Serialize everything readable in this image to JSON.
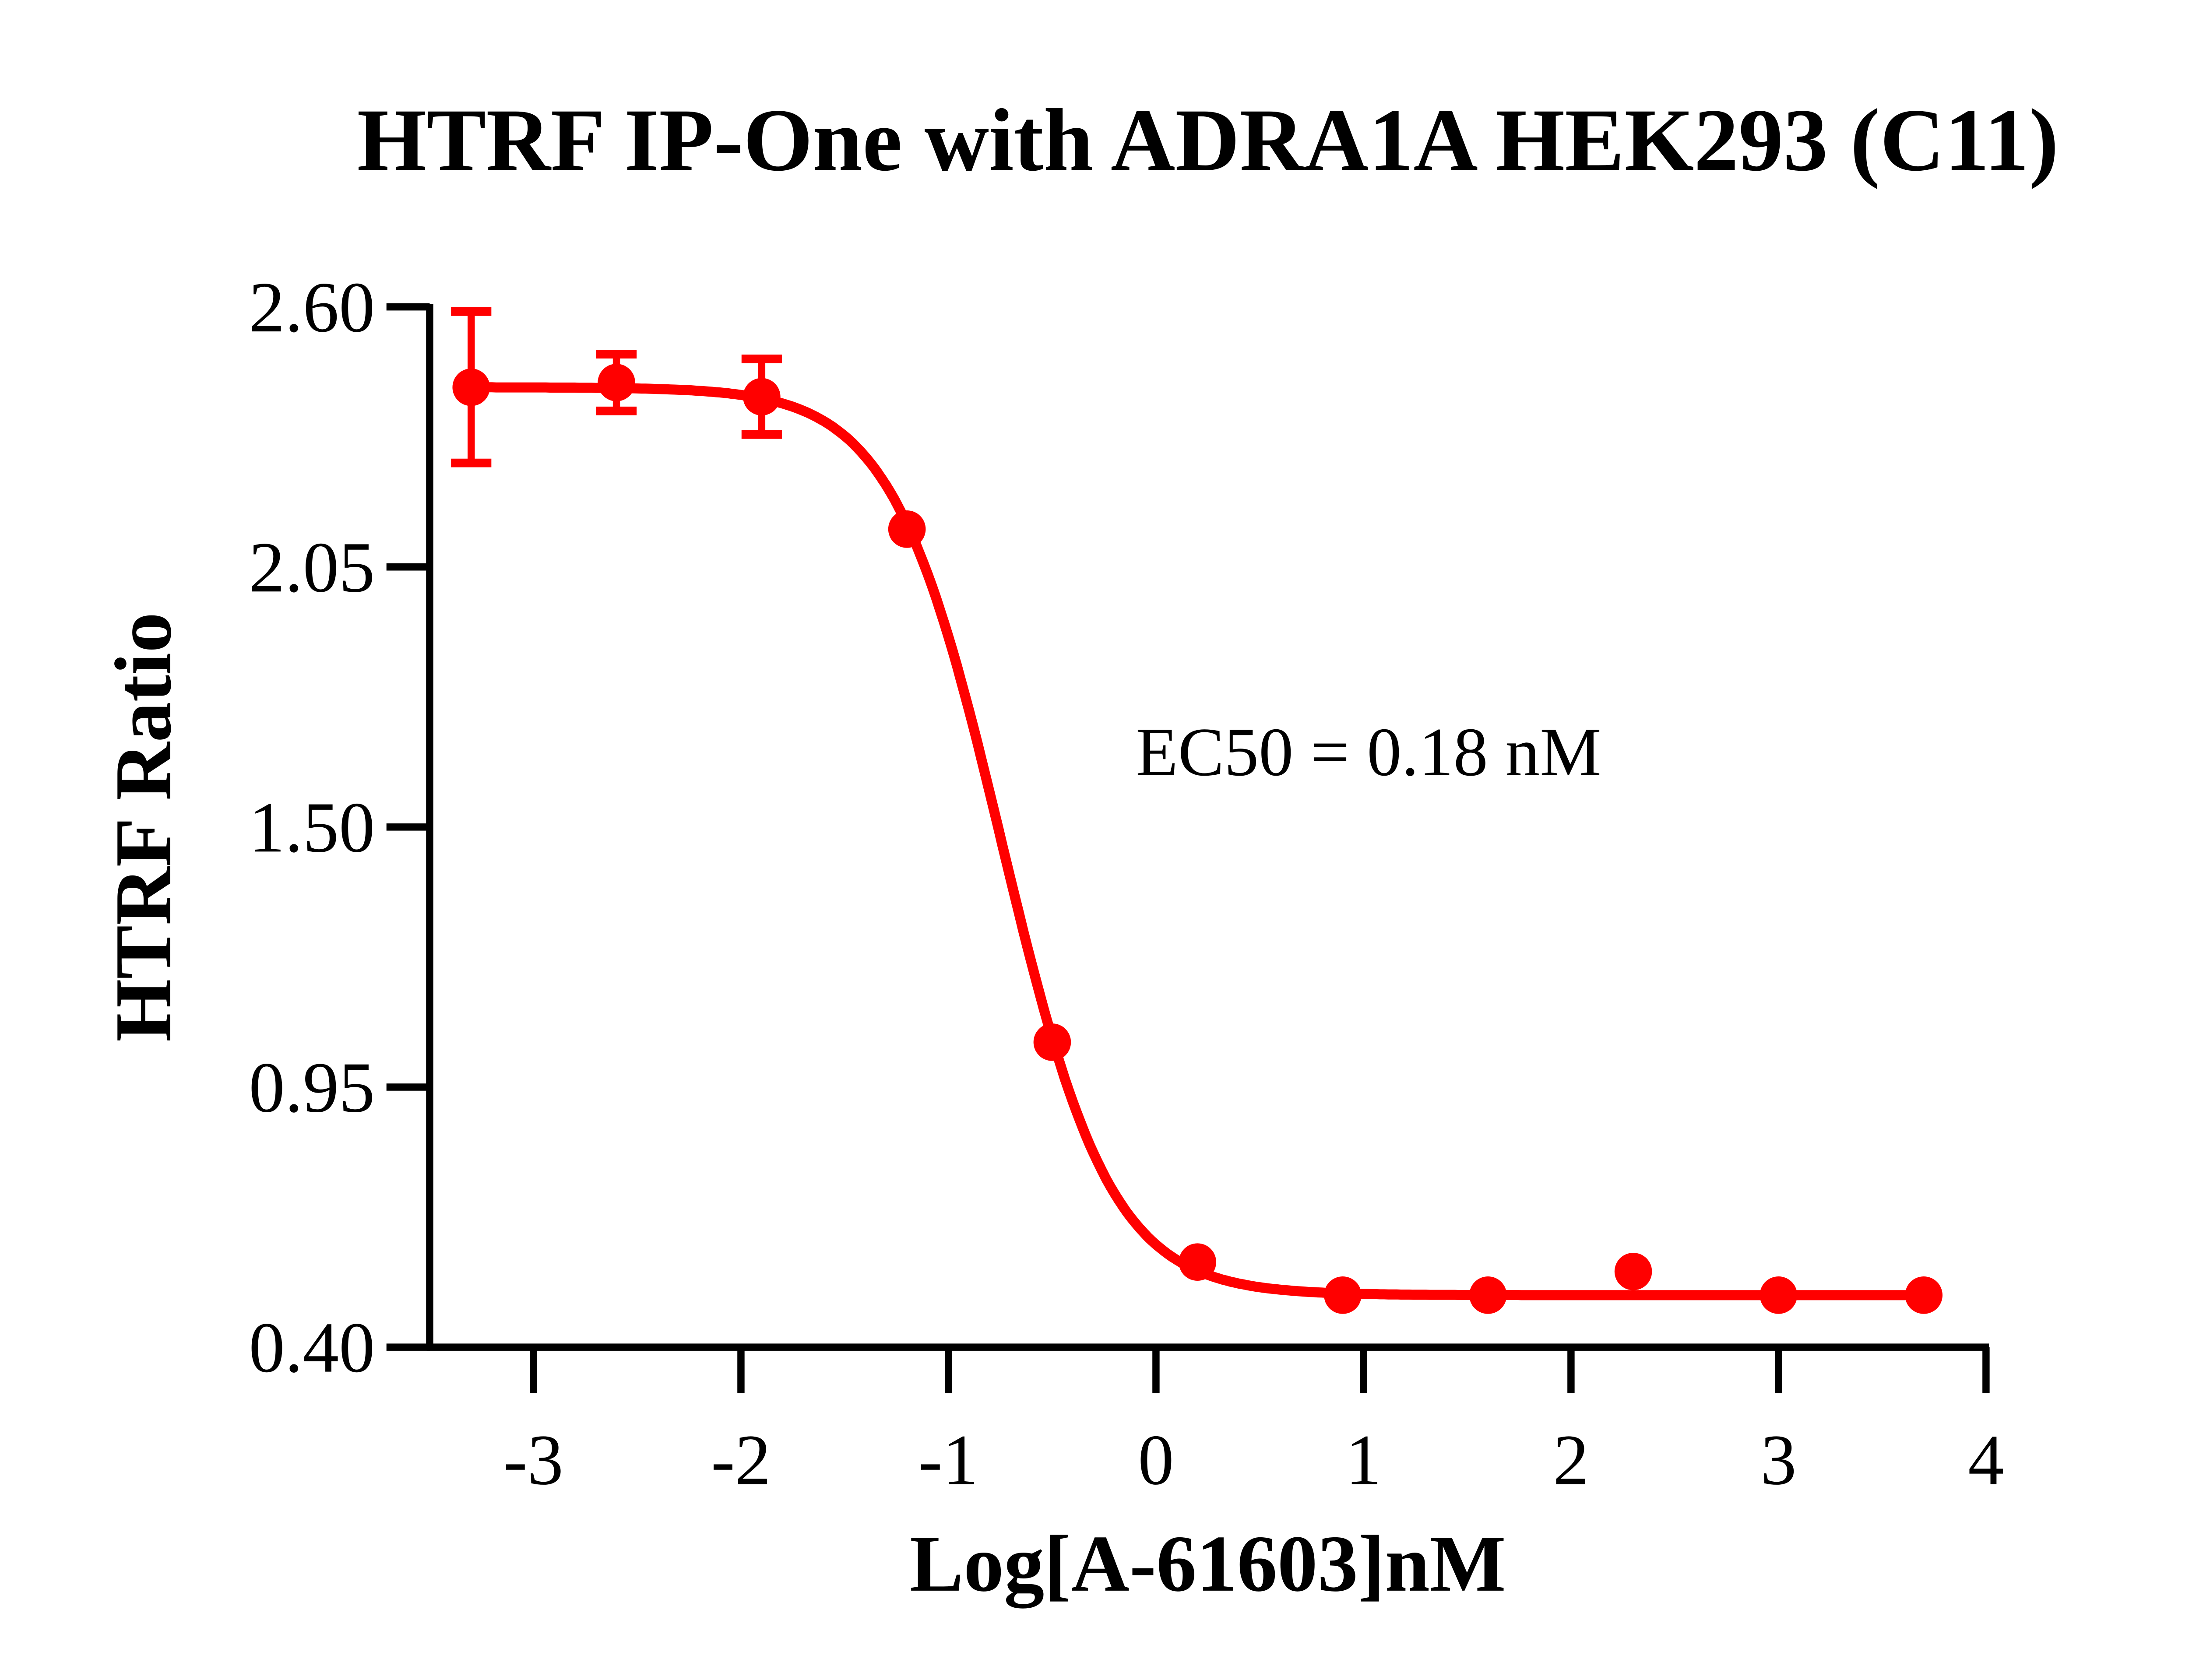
{
  "chart_data": {
    "type": "scatter",
    "title": "HTRF IP-One with ADRA1A HEK293 (C11)",
    "xlabel": "Log[A-61603]nM",
    "ylabel": "HTRF Ratio",
    "xlim": [
      -3.5,
      4
    ],
    "ylim": [
      0.4,
      2.6
    ],
    "xticks": [
      "-3",
      "-2",
      "-1",
      "0",
      "1",
      "2",
      "3",
      "4"
    ],
    "yticks": [
      "0.40",
      "0.95",
      "1.50",
      "2.05",
      "2.60"
    ],
    "grid": false,
    "color": "#ff0000",
    "annotation": "EC50 = 0.18 nM",
    "ec50_nM": 0.18,
    "series": [
      {
        "x": [
          -3.3,
          -2.6,
          -1.9,
          -1.2,
          -0.5,
          0.2,
          0.9,
          1.6,
          2.3,
          3.0,
          3.7
        ],
        "y": [
          2.43,
          2.44,
          2.41,
          2.13,
          1.045,
          0.58,
          0.51,
          0.51,
          0.56,
          0.51,
          0.51
        ],
        "error": [
          0.16,
          0.06,
          0.08,
          0,
          0,
          0,
          0,
          0,
          0,
          0,
          0
        ]
      }
    ],
    "fit": "sigmoidal dose-response curve"
  }
}
